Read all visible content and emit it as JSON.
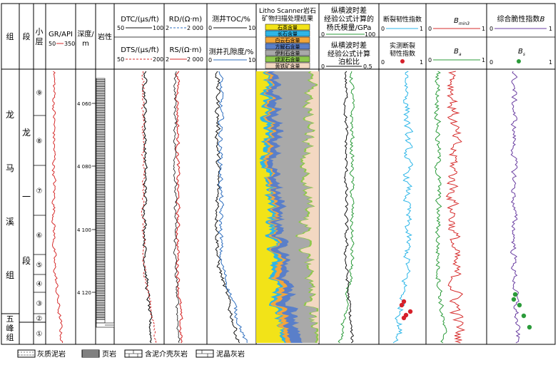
{
  "header": {
    "group": "组",
    "section": "段",
    "sublayer": "小层",
    "gr_label": "GR/API",
    "gr_min": "50",
    "gr_max": "350",
    "depth_label": "深度/m",
    "lithology": "岩性",
    "dtc_label": "DTC/(μs/ft)",
    "dtc_min": "50",
    "dtc_max": "100",
    "dts_label": "DTS/(μs/ft)",
    "dts_min": "50",
    "dts_max": "200",
    "rd_label": "RD/(Ω·m)",
    "rd_min": "2",
    "rd_max": "2 000",
    "rs_label": "RS/(Ω·m)",
    "rs_min": "2",
    "rs_max": "2 000",
    "toc_label": "测井TOC/%",
    "toc_min": "0",
    "toc_max": "10",
    "por_label": "测井孔隙度/%",
    "por_min": "0",
    "por_max": "10",
    "ls_title": "Litho Scanner岩石矿物扫描处理结果",
    "ls_items": [
      "石英含量",
      "长石含量",
      "白云石含量",
      "方解石含量",
      "伊利石含量",
      "绿泥石含量",
      "黄铁矿含量"
    ],
    "ym_title": "纵横波时差经验公式计算的杨氏模量/GPa",
    "ym_min": "0",
    "ym_max": "100",
    "pr_title": "纵横波时差经验公式计算泊松比",
    "pr_min": "0",
    "pr_max": "0.5",
    "frac_title": "断裂韧性指数",
    "frac_min": "0",
    "frac_max": "1",
    "frac_meas": "实测断裂韧性指数",
    "frac_meas_min": "0",
    "frac_meas_max": "1",
    "bmin_label": "B",
    "bmin_sub": "min3",
    "b_min": "0",
    "b_max": "1",
    "ba_label": "B",
    "ba_sub": "a",
    "ba_min": "0",
    "ba_max": "1",
    "bi_title": "综合脆性指数B",
    "bi_min": "0",
    "bi_max": "1",
    "bs_label": "B",
    "bs_sub": "s",
    "bs_min": "0",
    "bs_max": "1"
  },
  "body": {
    "group_upper": [
      "龙",
      "马",
      "溪",
      "组"
    ],
    "group_lower": [
      "五",
      "峰",
      "组"
    ],
    "section_upper": [
      "龙",
      "一"
    ],
    "section_lower": "段",
    "sublayers": [
      "⑨",
      "⑧",
      "⑦",
      "⑥",
      "⑤",
      "④",
      "③",
      "②",
      "①"
    ],
    "depths": [
      "4 060",
      "4 080",
      "4 100",
      "4 120"
    ]
  },
  "legend": {
    "items": [
      "灰质泥岩",
      "页岩",
      "含泥介壳灰岩",
      "泥晶灰岩"
    ]
  },
  "colors": {
    "gr": "#d62b2b",
    "dtc": "#111111",
    "dts": "#d62b2b",
    "rd": "#d62b2b",
    "rs": "#111111",
    "toc": "#111111",
    "por": "#2f6fbf",
    "quartz": "#f2e318",
    "feldspar": "#2fb5e6",
    "dolomite": "#f3a63a",
    "calcite": "#5a7fc9",
    "illite": "#a9a9a9",
    "chlorite": "#8dc84b",
    "pyrite": "#f3d8c2",
    "ym": "#2b9b3a",
    "pr": "#111111",
    "frac": "#2cb6e8",
    "frac_meas": "#d6202a",
    "bmin": "#d62b2b",
    "ba": "#2b9b3a",
    "bi": "#6a3ea1",
    "bs": "#2b9b3a"
  }
}
